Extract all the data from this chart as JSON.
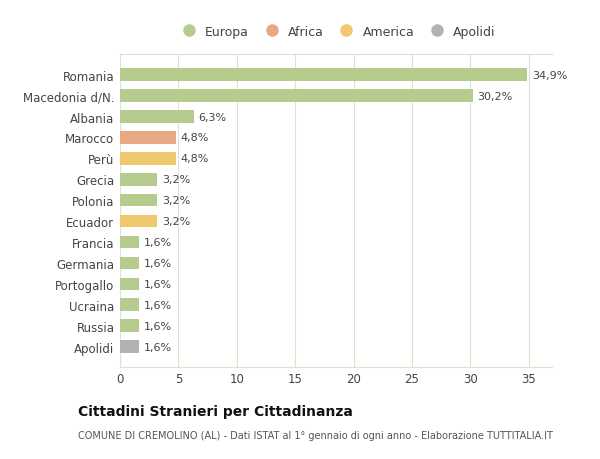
{
  "categories": [
    "Romania",
    "Macedonia d/N.",
    "Albania",
    "Marocco",
    "Perù",
    "Grecia",
    "Polonia",
    "Ecuador",
    "Francia",
    "Germania",
    "Portogallo",
    "Ucraina",
    "Russia",
    "Apolidi"
  ],
  "values": [
    34.9,
    30.2,
    6.3,
    4.8,
    4.8,
    3.2,
    3.2,
    3.2,
    1.6,
    1.6,
    1.6,
    1.6,
    1.6,
    1.6
  ],
  "labels": [
    "34,9%",
    "30,2%",
    "6,3%",
    "4,8%",
    "4,8%",
    "3,2%",
    "3,2%",
    "3,2%",
    "1,6%",
    "1,6%",
    "1,6%",
    "1,6%",
    "1,6%",
    "1,6%"
  ],
  "continent": [
    "Europa",
    "Europa",
    "Europa",
    "Africa",
    "America",
    "Europa",
    "Europa",
    "America",
    "Europa",
    "Europa",
    "Europa",
    "Europa",
    "Europa",
    "Apolidi"
  ],
  "colors": {
    "Europa": "#b5cc8e",
    "Africa": "#e8a882",
    "America": "#f0c96e",
    "Apolidi": "#b2b2b2"
  },
  "legend_order": [
    "Europa",
    "Africa",
    "America",
    "Apolidi"
  ],
  "legend_colors": {
    "Europa": "#b5cc8e",
    "Africa": "#e8a882",
    "America": "#f0c96e",
    "Apolidi": "#b2b2b2"
  },
  "xlim": [
    0,
    37
  ],
  "xticks": [
    0,
    5,
    10,
    15,
    20,
    25,
    30,
    35
  ],
  "title": "Cittadini Stranieri per Cittadinanza",
  "subtitle": "COMUNE DI CREMOLINO (AL) - Dati ISTAT al 1° gennaio di ogni anno - Elaborazione TUTTITALIA.IT",
  "bg_color": "#ffffff",
  "plot_bg_color": "#ffffff",
  "grid_color": "#e0e0d0"
}
